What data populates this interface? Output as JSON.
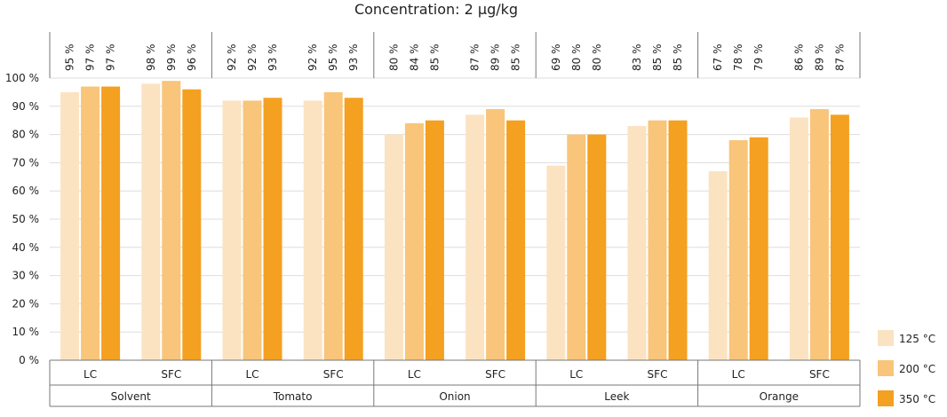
{
  "chart_data": {
    "type": "bar",
    "title": "Concentration: 2 µg/kg",
    "xlabel": "",
    "ylabel": "",
    "ylim": [
      0,
      100
    ],
    "y_ticks": [
      "0 %",
      "10 %",
      "20 %",
      "30 %",
      "40 %",
      "50 %",
      "60 %",
      "70 %",
      "80 %",
      "90 %",
      "100 %"
    ],
    "groups": [
      {
        "name": "Solvent",
        "subgroups": [
          {
            "name": "LC",
            "values": [
              95,
              97,
              97
            ],
            "labels": [
              "95 %",
              "97 %",
              "97 %"
            ]
          },
          {
            "name": "SFC",
            "values": [
              98,
              99,
              96
            ],
            "labels": [
              "98 %",
              "99 %",
              "96 %"
            ]
          }
        ]
      },
      {
        "name": "Tomato",
        "subgroups": [
          {
            "name": "LC",
            "values": [
              92,
              92,
              93
            ],
            "labels": [
              "92 %",
              "92 %",
              "93 %"
            ]
          },
          {
            "name": "SFC",
            "values": [
              92,
              95,
              93
            ],
            "labels": [
              "92 %",
              "95 %",
              "93 %"
            ]
          }
        ]
      },
      {
        "name": "Onion",
        "subgroups": [
          {
            "name": "LC",
            "values": [
              80,
              84,
              85
            ],
            "labels": [
              "80 %",
              "84 %",
              "85 %"
            ]
          },
          {
            "name": "SFC",
            "values": [
              87,
              89,
              85
            ],
            "labels": [
              "87 %",
              "89 %",
              "85 %"
            ]
          }
        ]
      },
      {
        "name": "Leek",
        "subgroups": [
          {
            "name": "LC",
            "values": [
              69,
              80,
              80
            ],
            "labels": [
              "69 %",
              "80 %",
              "80 %"
            ]
          },
          {
            "name": "SFC",
            "values": [
              83,
              85,
              85
            ],
            "labels": [
              "83 %",
              "85 %",
              "85 %"
            ]
          }
        ]
      },
      {
        "name": "Orange",
        "subgroups": [
          {
            "name": "LC",
            "values": [
              67,
              78,
              79
            ],
            "labels": [
              "67 %",
              "78 %",
              "79 %"
            ]
          },
          {
            "name": "SFC",
            "values": [
              86,
              89,
              87
            ],
            "labels": [
              "86 %",
              "89 %",
              "87 %"
            ]
          }
        ]
      }
    ],
    "series": [
      {
        "name": "125 °C",
        "color": "#fbe3c2"
      },
      {
        "name": "200 °C",
        "color": "#f8c57a"
      },
      {
        "name": "350 °C",
        "color": "#f4a020"
      }
    ],
    "legend": "right-bottom",
    "grid": true
  }
}
